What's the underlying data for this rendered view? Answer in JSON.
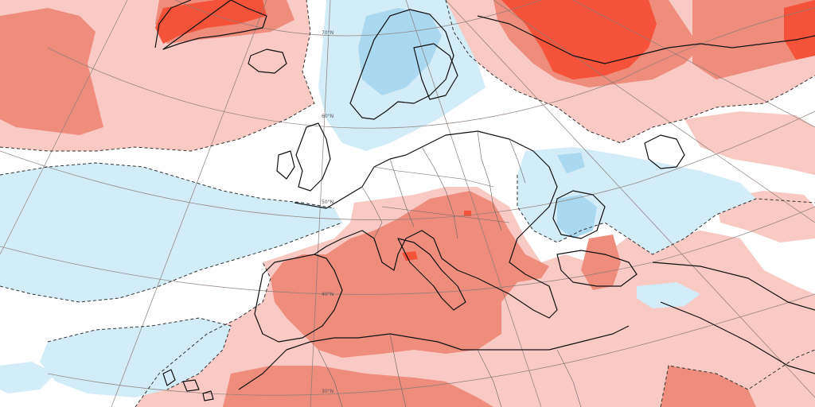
{
  "map": {
    "colors": {
      "background": "#ffffff",
      "anom_pos_light": "#f9c9c3",
      "anom_pos_mid": "#ef8d7d",
      "anom_pos_strong": "#f5523a",
      "anom_neg_light": "#d2ecf8",
      "anom_neg_mid": "#aad8f1",
      "coastline": "#111111",
      "borders": "#666666",
      "graticule": "#8a7b76",
      "contour_dashed": "#333333"
    },
    "latitude_labels": [
      "70°N",
      "60°N",
      "50°N",
      "40°N",
      "30°N"
    ]
  }
}
